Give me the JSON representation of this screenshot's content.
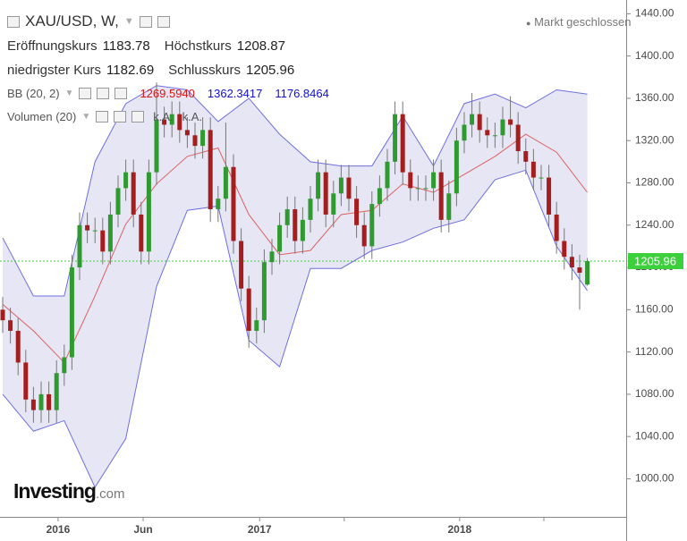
{
  "chart_data": {
    "type": "candlestick",
    "legend": {
      "symbol": "XAU/USD, W,",
      "fields": [
        {
          "name": "Eröffnungskurs",
          "value": 1183.78
        },
        {
          "name": "Höchstkurs",
          "value": 1208.87
        },
        {
          "name": "niedrigster Kurs",
          "value": 1182.69
        },
        {
          "name": "Schlusskurs",
          "value": 1205.96
        }
      ],
      "bb": {
        "name": "BB (20, 2)",
        "values": [
          "1269.5940",
          "1362.3417",
          "1176.8464"
        ],
        "colors": [
          "#e01010",
          "#1010d0",
          "#1010d0"
        ]
      },
      "volume": {
        "name": "Volumen (20)",
        "values": [
          "k.A.",
          "k.A."
        ]
      }
    },
    "status": "Markt geschlossen",
    "logo": {
      "name": "Investing",
      "suffix": ".com"
    },
    "up_color": "#2f9a2f",
    "down_color": "#a51e1e",
    "open": [
      1160,
      1150,
      1140,
      1110,
      1075,
      1065,
      1080,
      1065,
      1100,
      1115,
      1200,
      1240,
      1235,
      1235,
      1215,
      1250,
      1275,
      1290,
      1250,
      1215,
      1290,
      1340,
      1335,
      1345,
      1330,
      1325,
      1315,
      1330,
      1255,
      1265,
      1295,
      1225,
      1180,
      1140,
      1150,
      1205,
      1215,
      1240,
      1255,
      1225,
      1245,
      1265,
      1290,
      1250,
      1270,
      1285,
      1265,
      1240,
      1220,
      1260,
      1275,
      1300,
      1345,
      1290,
      1275,
      1275,
      1275,
      1290,
      1245,
      1270,
      1320,
      1335,
      1345,
      1330,
      1325,
      1325,
      1340,
      1335,
      1310,
      1300,
      1285,
      1285,
      1250,
      1225,
      1210,
      1200,
      1183.78
    ],
    "high": [
      1172,
      1162,
      1152,
      1122,
      1087,
      1092,
      1092,
      1112,
      1127,
      1212,
      1252,
      1252,
      1247,
      1247,
      1262,
      1287,
      1302,
      1302,
      1262,
      1302,
      1375,
      1352,
      1357,
      1357,
      1342,
      1337,
      1342,
      1342,
      1277,
      1337,
      1307,
      1237,
      1192,
      1162,
      1217,
      1227,
      1252,
      1267,
      1267,
      1257,
      1277,
      1302,
      1302,
      1282,
      1297,
      1297,
      1277,
      1252,
      1272,
      1287,
      1312,
      1357,
      1357,
      1302,
      1287,
      1287,
      1302,
      1302,
      1282,
      1332,
      1347,
      1365,
      1357,
      1342,
      1337,
      1352,
      1362,
      1347,
      1322,
      1312,
      1297,
      1297,
      1262,
      1237,
      1222,
      1212,
      1208.87
    ],
    "low": [
      1138,
      1128,
      1098,
      1063,
      1053,
      1053,
      1053,
      1053,
      1088,
      1103,
      1188,
      1223,
      1223,
      1203,
      1203,
      1238,
      1263,
      1238,
      1203,
      1203,
      1278,
      1323,
      1323,
      1318,
      1313,
      1303,
      1303,
      1243,
      1243,
      1253,
      1213,
      1168,
      1124,
      1128,
      1138,
      1193,
      1203,
      1228,
      1213,
      1213,
      1233,
      1253,
      1238,
      1238,
      1258,
      1253,
      1228,
      1208,
      1208,
      1248,
      1263,
      1288,
      1278,
      1263,
      1263,
      1263,
      1263,
      1233,
      1233,
      1258,
      1308,
      1323,
      1318,
      1313,
      1313,
      1313,
      1323,
      1298,
      1288,
      1273,
      1273,
      1238,
      1213,
      1198,
      1188,
      1160,
      1182.69
    ],
    "close": [
      1150,
      1140,
      1110,
      1075,
      1065,
      1080,
      1065,
      1100,
      1115,
      1200,
      1240,
      1235,
      1235,
      1215,
      1250,
      1275,
      1290,
      1250,
      1215,
      1290,
      1340,
      1335,
      1345,
      1330,
      1325,
      1315,
      1330,
      1255,
      1265,
      1295,
      1225,
      1180,
      1140,
      1150,
      1205,
      1215,
      1240,
      1255,
      1225,
      1245,
      1265,
      1290,
      1250,
      1270,
      1285,
      1265,
      1240,
      1220,
      1260,
      1275,
      1300,
      1345,
      1290,
      1275,
      1275,
      1275,
      1290,
      1245,
      1270,
      1320,
      1335,
      1345,
      1330,
      1325,
      1325,
      1340,
      1335,
      1310,
      1300,
      1285,
      1285,
      1250,
      1225,
      1210,
      1200,
      1195,
      1205.96
    ],
    "bb": {
      "x": [
        0,
        4,
        8,
        12,
        16,
        20,
        24,
        28,
        32,
        36,
        40,
        44,
        48,
        52,
        56,
        60,
        64,
        68,
        72,
        76
      ],
      "upper": [
        1228,
        1173,
        1173,
        1300,
        1355,
        1372,
        1368,
        1338,
        1360,
        1326,
        1300,
        1296,
        1296,
        1343,
        1296,
        1355,
        1364,
        1351,
        1368,
        1364
      ],
      "middle": [
        1165,
        1140,
        1110,
        1173,
        1241,
        1279,
        1305,
        1313,
        1250,
        1212,
        1216,
        1250,
        1254,
        1279,
        1271,
        1288,
        1305,
        1326,
        1309,
        1271
      ],
      "lower": [
        1080,
        1045,
        1055,
        992,
        1038,
        1182,
        1254,
        1258,
        1131,
        1106,
        1199,
        1199,
        1216,
        1224,
        1237,
        1245,
        1283,
        1292,
        1220,
        1178
      ],
      "upper_color": "#6f6fe0",
      "middle_color": "#e06060",
      "fill": "#e6e6f4"
    },
    "last_price": 1205.96,
    "last_price_color": "#3cd03c",
    "xlim": [
      -0.35,
      81.05
    ],
    "ylim": [
      964,
      1453
    ],
    "xticks": [
      {
        "value": 7.2,
        "label": "2016"
      },
      {
        "value": 18.26,
        "label": "Jun"
      },
      {
        "value": 33.4,
        "label": "2017"
      },
      {
        "value": 44.4,
        "label": null
      },
      {
        "value": 59.4,
        "label": "2018"
      },
      {
        "value": 70.35,
        "label": null
      }
    ],
    "yticks": [
      {
        "value": 1000,
        "label": "1000.00"
      },
      {
        "value": 1040,
        "label": "1040.00"
      },
      {
        "value": 1080,
        "label": "1080.00"
      },
      {
        "value": 1120,
        "label": "1120.00"
      },
      {
        "value": 1160,
        "label": "1160.00"
      },
      {
        "value": 1200,
        "label": "1200.00"
      },
      {
        "value": 1240,
        "label": "1240.00"
      },
      {
        "value": 1280,
        "label": "1280.00"
      },
      {
        "value": 1320,
        "label": "1320.00"
      },
      {
        "value": 1360,
        "label": "1360.00"
      },
      {
        "value": 1400,
        "label": "1400.00"
      },
      {
        "value": 1440,
        "label": "1440.00"
      }
    ]
  }
}
